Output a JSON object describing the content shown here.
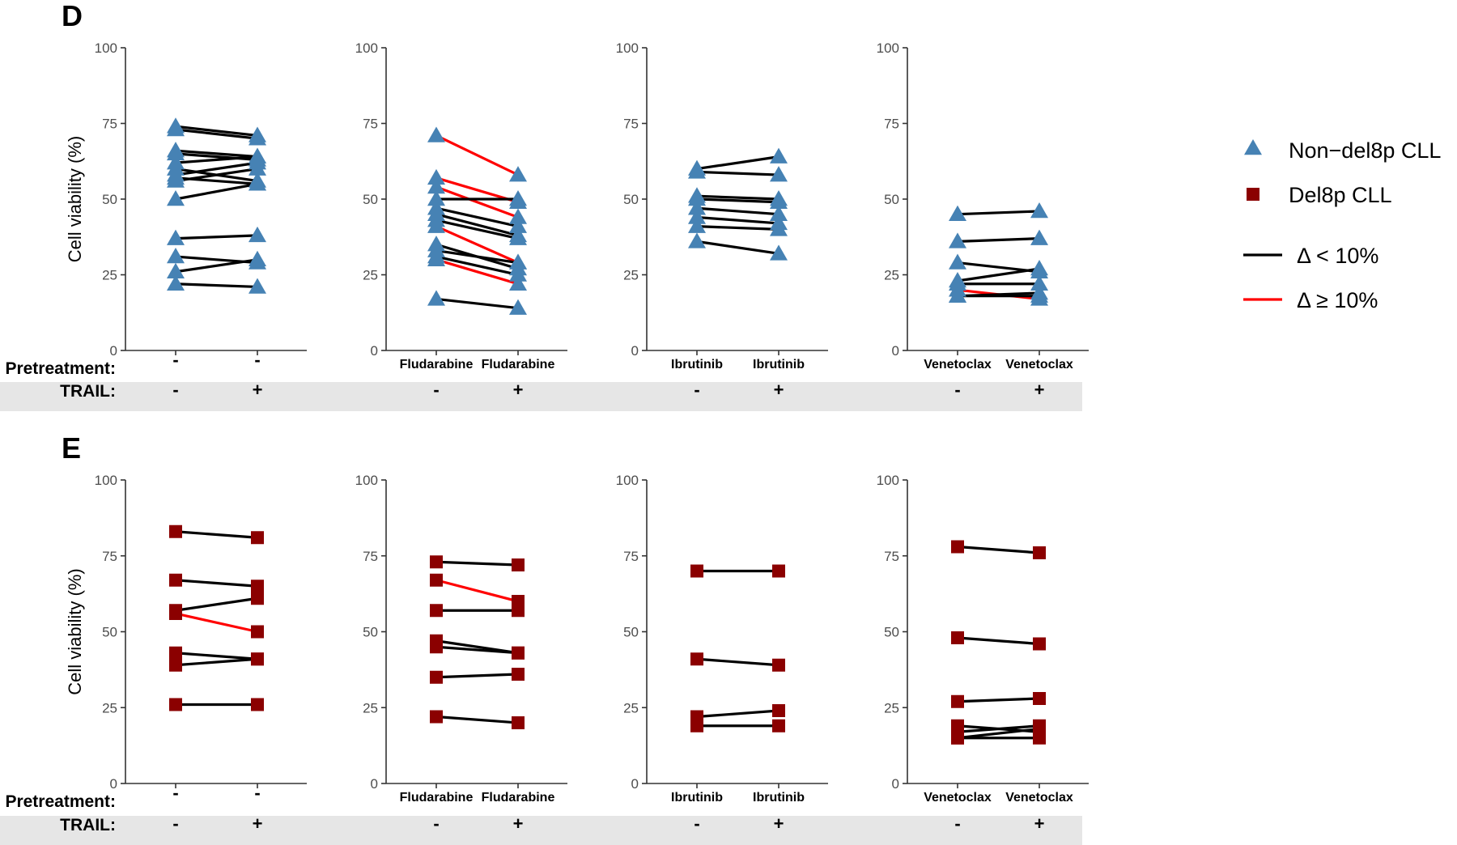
{
  "panels": [
    {
      "letter": "D",
      "ylabel": "Cell viability (%)"
    },
    {
      "letter": "E",
      "ylabel": "Cell viability (%)"
    }
  ],
  "row_labels": {
    "pretreatment": "Pretreatment:",
    "trail": "TRAIL:"
  },
  "legend": {
    "items": [
      {
        "label": "Non−del8p CLL",
        "kind": "marker",
        "shape": "triangle",
        "color": "#4682b4"
      },
      {
        "label": "Del8p CLL",
        "kind": "marker",
        "shape": "square",
        "color": "#8b0000"
      },
      {
        "label": "Δ < 10%",
        "kind": "line",
        "color": "#000000"
      },
      {
        "label": "Δ ≥ 10%",
        "kind": "line",
        "color": "#ff0000"
      }
    ]
  },
  "colors": {
    "non_del8p": "#4682b4",
    "del8p": "#8b0000",
    "delta_small": "#000000",
    "delta_large": "#ff0000",
    "row_band": "#e6e6e6"
  },
  "chart_data": [
    {
      "type": "line",
      "panel": "D",
      "treatment": "-",
      "pretreatment": [
        "-",
        "-"
      ],
      "trail": [
        "-",
        "+"
      ],
      "ylim": [
        0,
        100
      ],
      "yticks": [
        "0",
        "25",
        "50",
        "75",
        "100"
      ],
      "marker": "triangle",
      "series_group": "Non−del8p CLL",
      "pairs": [
        [
          74,
          71,
          "small"
        ],
        [
          73,
          70,
          "small"
        ],
        [
          66,
          64,
          "small"
        ],
        [
          65,
          63,
          "small"
        ],
        [
          62,
          64,
          "small"
        ],
        [
          60,
          56,
          "small"
        ],
        [
          58,
          62,
          "small"
        ],
        [
          57,
          55,
          "small"
        ],
        [
          56,
          60,
          "small"
        ],
        [
          50,
          55,
          "small"
        ],
        [
          37,
          38,
          "small"
        ],
        [
          31,
          29,
          "small"
        ],
        [
          26,
          30,
          "small"
        ],
        [
          22,
          21,
          "small"
        ]
      ]
    },
    {
      "type": "line",
      "panel": "D",
      "treatment": "Fludarabine",
      "pretreatment": [
        "Fludarabine",
        "Fludarabine"
      ],
      "trail": [
        "-",
        "+"
      ],
      "ylim": [
        0,
        100
      ],
      "yticks": [
        "0",
        "25",
        "50",
        "75",
        "100"
      ],
      "marker": "triangle",
      "series_group": "Non−del8p CLL",
      "pairs": [
        [
          71,
          58,
          "large"
        ],
        [
          57,
          49,
          "large"
        ],
        [
          54,
          44,
          "large"
        ],
        [
          50,
          50,
          "small"
        ],
        [
          47,
          41,
          "small"
        ],
        [
          45,
          38,
          "small"
        ],
        [
          43,
          37,
          "small"
        ],
        [
          41,
          29,
          "large"
        ],
        [
          35,
          27,
          "small"
        ],
        [
          33,
          29,
          "small"
        ],
        [
          31,
          25,
          "small"
        ],
        [
          30,
          22,
          "large"
        ],
        [
          17,
          14,
          "small"
        ]
      ]
    },
    {
      "type": "line",
      "panel": "D",
      "treatment": "Ibrutinib",
      "pretreatment": [
        "Ibrutinib",
        "Ibrutinib"
      ],
      "trail": [
        "-",
        "+"
      ],
      "ylim": [
        0,
        100
      ],
      "yticks": [
        "0",
        "25",
        "50",
        "75",
        "100"
      ],
      "marker": "triangle",
      "series_group": "Non−del8p CLL",
      "pairs": [
        [
          60,
          64,
          "small"
        ],
        [
          59,
          58,
          "small"
        ],
        [
          51,
          50,
          "small"
        ],
        [
          50,
          49,
          "small"
        ],
        [
          47,
          45,
          "small"
        ],
        [
          44,
          42,
          "small"
        ],
        [
          41,
          40,
          "small"
        ],
        [
          36,
          32,
          "small"
        ]
      ]
    },
    {
      "type": "line",
      "panel": "D",
      "treatment": "Venetoclax",
      "pretreatment": [
        "Venetoclax",
        "Venetoclax"
      ],
      "trail": [
        "-",
        "+"
      ],
      "ylim": [
        0,
        100
      ],
      "yticks": [
        "0",
        "25",
        "50",
        "75",
        "100"
      ],
      "marker": "triangle",
      "series_group": "Non−del8p CLL",
      "pairs": [
        [
          45,
          46,
          "small"
        ],
        [
          36,
          37,
          "small"
        ],
        [
          29,
          26,
          "small"
        ],
        [
          23,
          27,
          "small"
        ],
        [
          22,
          22,
          "small"
        ],
        [
          20,
          17,
          "large"
        ],
        [
          18,
          19,
          "small"
        ],
        [
          18,
          18,
          "small"
        ]
      ]
    },
    {
      "type": "line",
      "panel": "E",
      "treatment": "-",
      "pretreatment": [
        "-",
        "-"
      ],
      "trail": [
        "-",
        "+"
      ],
      "ylim": [
        0,
        100
      ],
      "yticks": [
        "0",
        "25",
        "50",
        "75",
        "100"
      ],
      "marker": "square",
      "series_group": "Del8p CLL",
      "pairs": [
        [
          83,
          81,
          "small"
        ],
        [
          67,
          65,
          "small"
        ],
        [
          57,
          61,
          "small"
        ],
        [
          56,
          50,
          "large"
        ],
        [
          43,
          41,
          "small"
        ],
        [
          39,
          41,
          "small"
        ],
        [
          26,
          26,
          "small"
        ]
      ]
    },
    {
      "type": "line",
      "panel": "E",
      "treatment": "Fludarabine",
      "pretreatment": [
        "Fludarabine",
        "Fludarabine"
      ],
      "trail": [
        "-",
        "+"
      ],
      "ylim": [
        0,
        100
      ],
      "yticks": [
        "0",
        "25",
        "50",
        "75",
        "100"
      ],
      "marker": "square",
      "series_group": "Del8p CLL",
      "pairs": [
        [
          73,
          72,
          "small"
        ],
        [
          67,
          60,
          "large"
        ],
        [
          57,
          57,
          "small"
        ],
        [
          47,
          43,
          "small"
        ],
        [
          45,
          43,
          "small"
        ],
        [
          35,
          36,
          "small"
        ],
        [
          22,
          20,
          "small"
        ]
      ]
    },
    {
      "type": "line",
      "panel": "E",
      "treatment": "Ibrutinib",
      "pretreatment": [
        "Ibrutinib",
        "Ibrutinib"
      ],
      "trail": [
        "-",
        "+"
      ],
      "ylim": [
        0,
        100
      ],
      "yticks": [
        "0",
        "25",
        "50",
        "75",
        "100"
      ],
      "marker": "square",
      "series_group": "Del8p CLL",
      "pairs": [
        [
          70,
          70,
          "small"
        ],
        [
          41,
          39,
          "small"
        ],
        [
          22,
          24,
          "small"
        ],
        [
          19,
          19,
          "small"
        ]
      ]
    },
    {
      "type": "line",
      "panel": "E",
      "treatment": "Venetoclax",
      "pretreatment": [
        "Venetoclax",
        "Venetoclax"
      ],
      "trail": [
        "-",
        "+"
      ],
      "ylim": [
        0,
        100
      ],
      "yticks": [
        "0",
        "25",
        "50",
        "75",
        "100"
      ],
      "marker": "square",
      "series_group": "Del8p CLL",
      "pairs": [
        [
          78,
          76,
          "small"
        ],
        [
          48,
          46,
          "small"
        ],
        [
          27,
          28,
          "small"
        ],
        [
          19,
          17,
          "small"
        ],
        [
          17,
          19,
          "small"
        ],
        [
          15,
          18,
          "small"
        ],
        [
          15,
          15,
          "small"
        ]
      ]
    }
  ]
}
